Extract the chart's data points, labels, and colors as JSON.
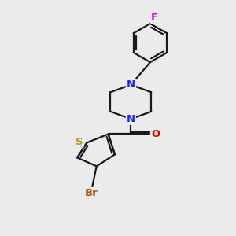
{
  "bg_color": "#ebebeb",
  "bond_color": "#1a1a1a",
  "N_color": "#2020ff",
  "O_color": "#e00000",
  "S_color": "#b8a000",
  "Br_color": "#b85000",
  "F_color": "#dd00dd",
  "line_width": 1.6,
  "figsize": [
    3.0,
    3.0
  ],
  "dpi": 100,
  "xlim": [
    0,
    10
  ],
  "ylim": [
    0,
    11
  ]
}
